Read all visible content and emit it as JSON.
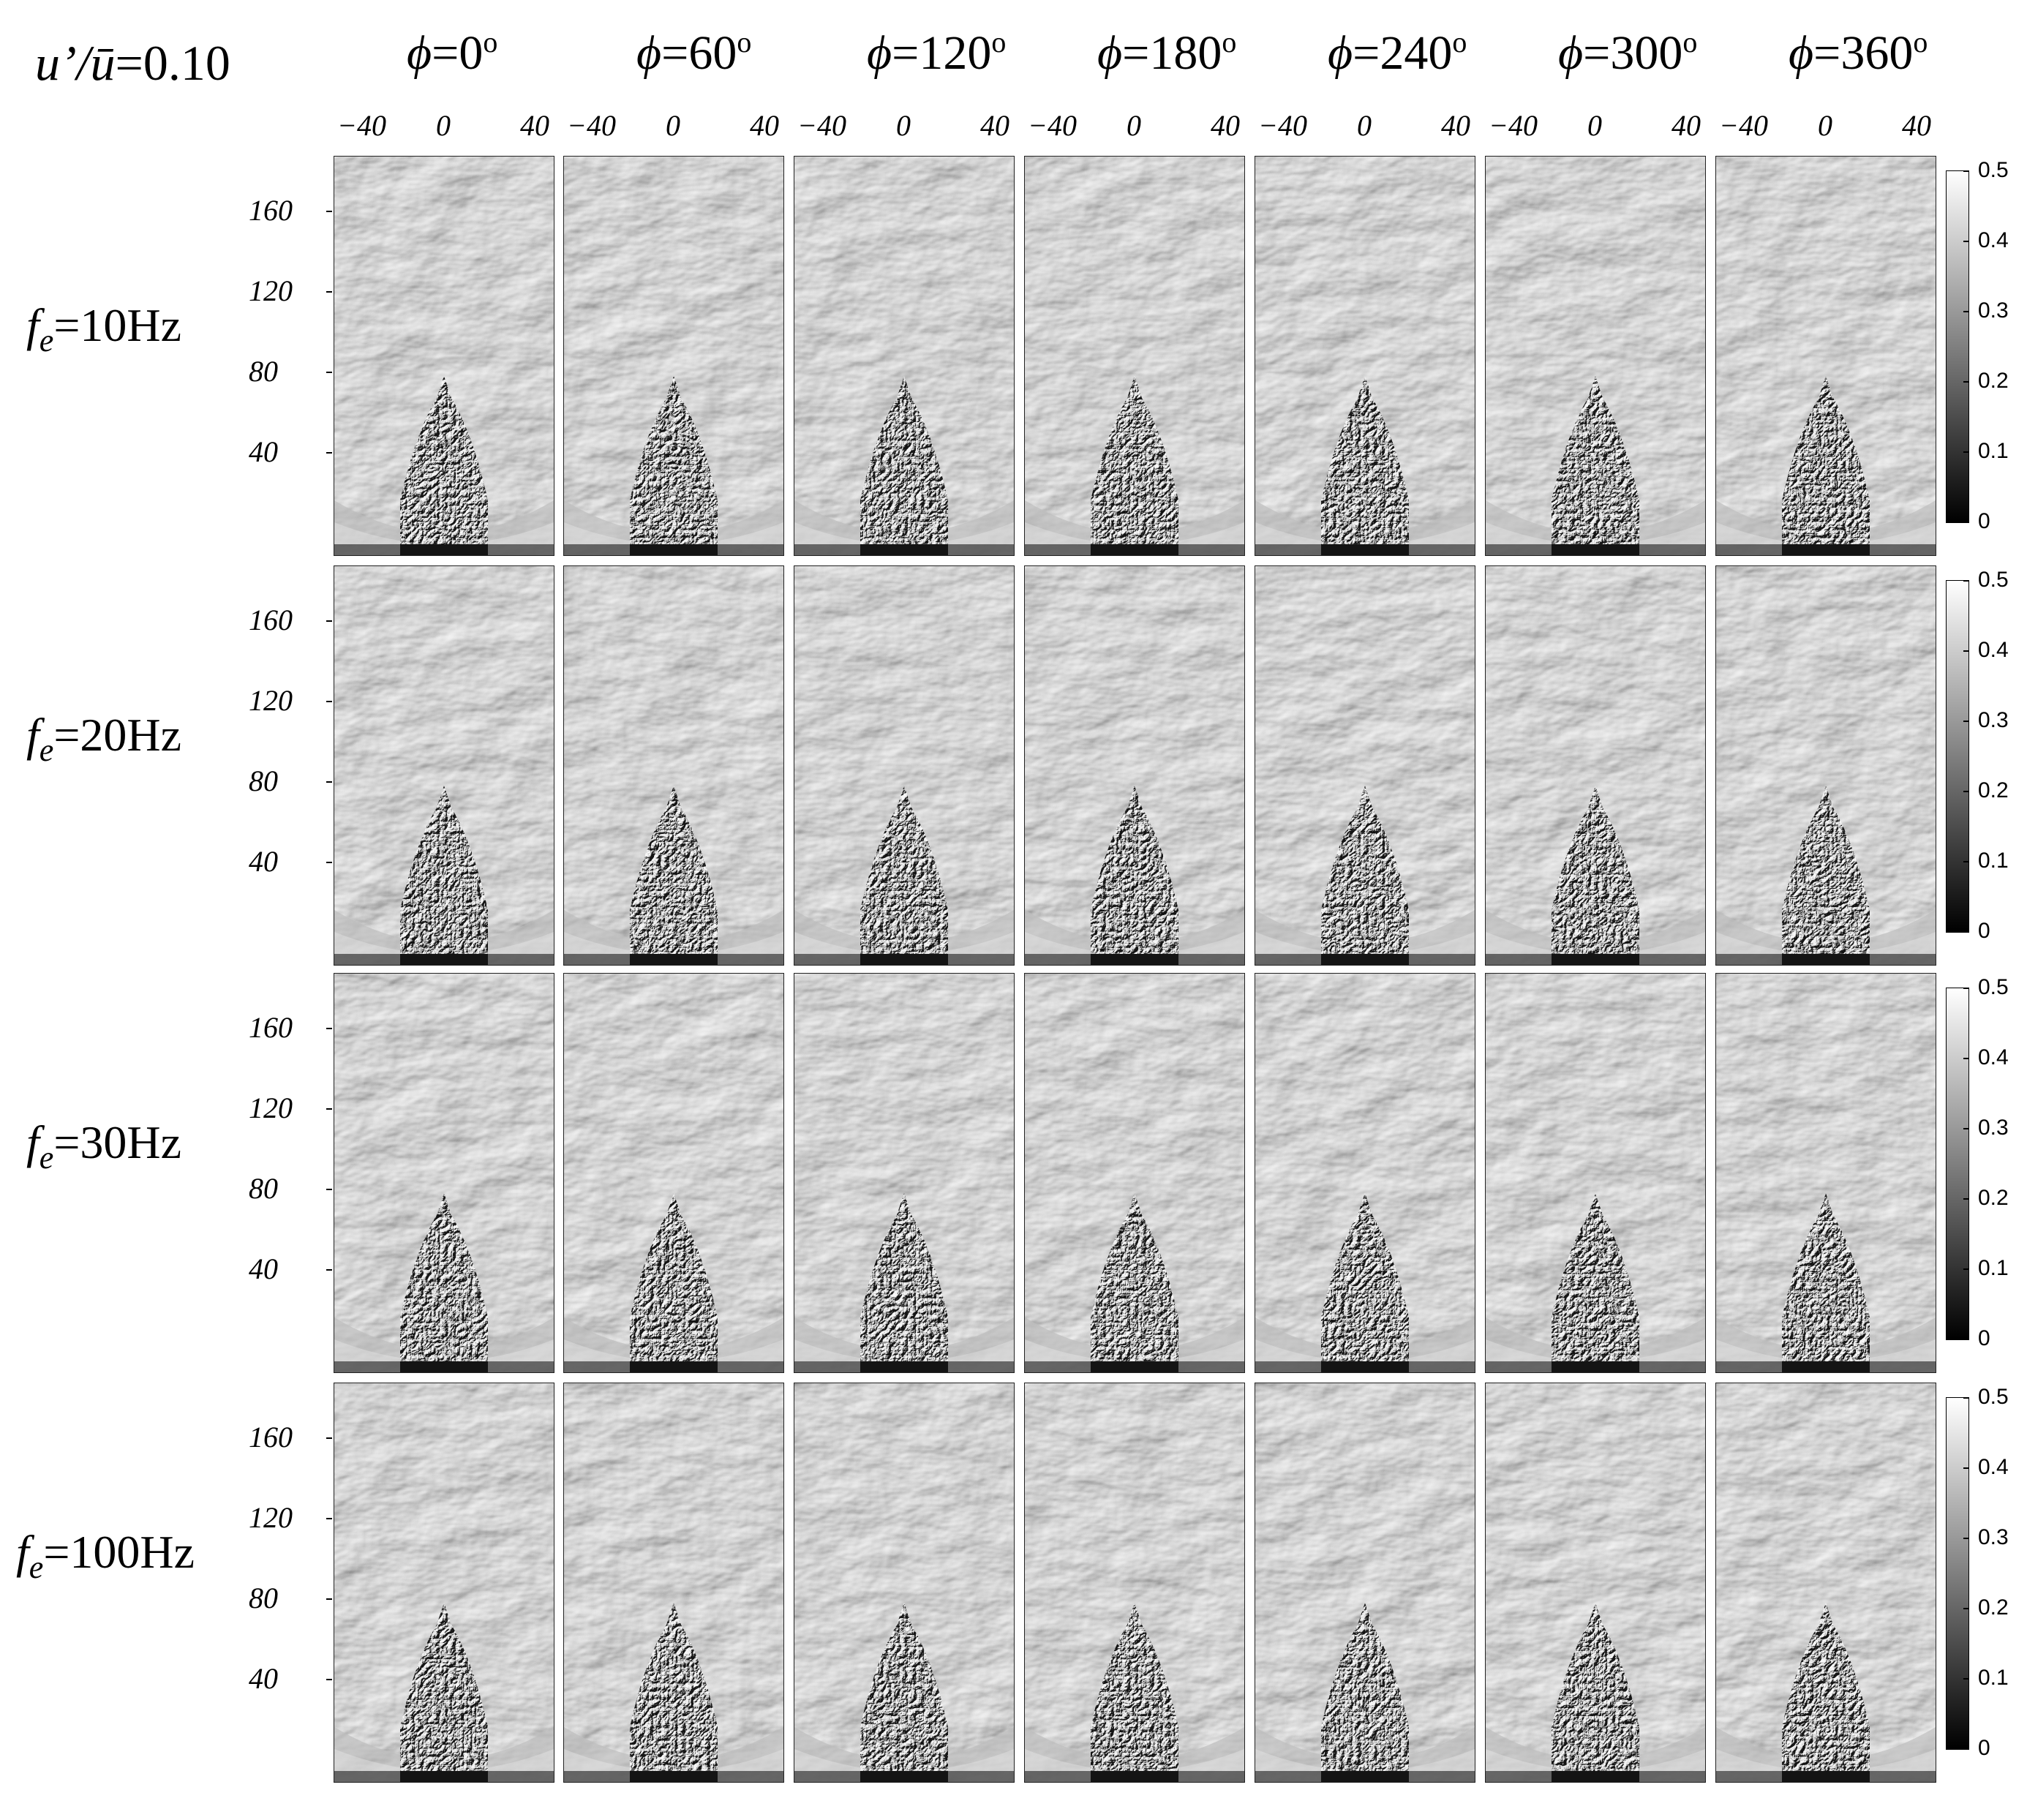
{
  "title": {
    "u_prime": "u’/",
    "u_bar": "ū",
    "value": "=0.10"
  },
  "phases": [
    {
      "symbol": "ϕ",
      "value": "=0",
      "unit": "o"
    },
    {
      "symbol": "ϕ",
      "value": "=60",
      "unit": "o"
    },
    {
      "symbol": "ϕ",
      "value": "=120",
      "unit": "o"
    },
    {
      "symbol": "ϕ",
      "value": "=180",
      "unit": "o"
    },
    {
      "symbol": "ϕ",
      "value": "=240",
      "unit": "o"
    },
    {
      "symbol": "ϕ",
      "value": "=300",
      "unit": "o"
    },
    {
      "symbol": "ϕ",
      "value": "=360",
      "unit": "o"
    }
  ],
  "x_ticks": [
    "−40",
    "0",
    "40"
  ],
  "y_ticks": [
    "160",
    "120",
    "80",
    "40"
  ],
  "rows": [
    {
      "symbol": "f",
      "sub": "e",
      "value": "=10Hz"
    },
    {
      "symbol": "f",
      "sub": "e",
      "value": "=20Hz"
    },
    {
      "symbol": "f",
      "sub": "e",
      "value": "=30Hz"
    },
    {
      "symbol": "f",
      "sub": "e",
      "value": "=100Hz"
    }
  ],
  "colorbar": {
    "ticks": [
      "0.5",
      "0.4",
      "0.3",
      "0.2",
      "0.1",
      "0"
    ],
    "min": 0,
    "max": 0.5,
    "colormap": "gray"
  }
}
